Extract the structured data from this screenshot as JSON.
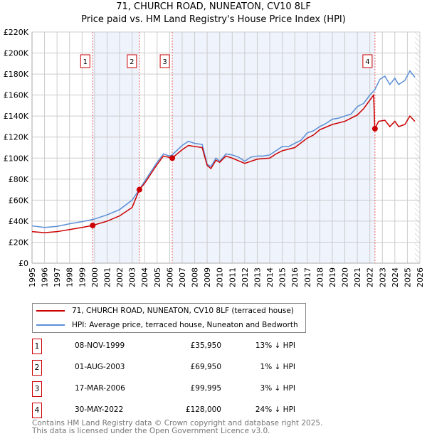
{
  "chart_data": {
    "type": "line",
    "title": "71, CHURCH ROAD, NUNEATON, CV10 8LF",
    "subtitle": "Price paid vs. HM Land Registry's House Price Index (HPI)",
    "xlim": [
      1995,
      2026
    ],
    "ylim": [
      0,
      220000
    ],
    "x_ticks": [
      "1995",
      "1996",
      "1997",
      "1998",
      "1999",
      "2000",
      "2001",
      "2002",
      "2003",
      "2004",
      "2005",
      "2006",
      "2007",
      "2008",
      "2009",
      "2010",
      "2011",
      "2012",
      "2013",
      "2014",
      "2015",
      "2016",
      "2017",
      "2018",
      "2019",
      "2020",
      "2021",
      "2022",
      "2023",
      "2024",
      "2025",
      "2026"
    ],
    "y_ticks": [
      {
        "v": 0,
        "label": "£0"
      },
      {
        "v": 20000,
        "label": "£20K"
      },
      {
        "v": 40000,
        "label": "£40K"
      },
      {
        "v": 60000,
        "label": "£60K"
      },
      {
        "v": 80000,
        "label": "£80K"
      },
      {
        "v": 100000,
        "label": "£100K"
      },
      {
        "v": 120000,
        "label": "£120K"
      },
      {
        "v": 140000,
        "label": "£140K"
      },
      {
        "v": 160000,
        "label": "£160K"
      },
      {
        "v": 180000,
        "label": "£180K"
      },
      {
        "v": 200000,
        "label": "£200K"
      },
      {
        "v": 220000,
        "label": "£220K"
      }
    ],
    "grid": true,
    "legend_placement": "bottom",
    "series": [
      {
        "name": "71, CHURCH ROAD, NUNEATON, CV10 8LF (terraced house)",
        "color": "#cc0000",
        "x": [
          1995,
          1996,
          1997,
          1998,
          1999,
          1999.85,
          2001,
          2002,
          2003,
          2003.58,
          2004,
          2005,
          2005.5,
          2006.2,
          2007,
          2007.5,
          2008.6,
          2009,
          2009.3,
          2009.7,
          2010,
          2010.5,
          2011,
          2012,
          2013,
          2014,
          2014.5,
          2015,
          2016,
          2017,
          2017.5,
          2018,
          2019,
          2020,
          2021,
          2021.5,
          2022.3,
          2022.4,
          2022.7,
          2023.2,
          2023.6,
          2024,
          2024.3,
          2024.8,
          2025.2,
          2025.6
        ],
        "y": [
          30000,
          29000,
          30000,
          32000,
          34000,
          35950,
          40000,
          45000,
          53000,
          69950,
          76000,
          94000,
          102000,
          99995,
          108000,
          112000,
          110000,
          93000,
          90000,
          98000,
          96000,
          102000,
          100000,
          95000,
          99000,
          100000,
          104000,
          107000,
          110000,
          119000,
          122000,
          127000,
          132000,
          135000,
          141000,
          147000,
          160000,
          128000,
          135000,
          136000,
          130000,
          135000,
          130000,
          132000,
          140000,
          135000
        ]
      },
      {
        "name": "HPI: Average price, terraced house, Nuneaton and Bedworth",
        "color": "#5b8fd6",
        "x": [
          1995,
          1996,
          1997,
          1998,
          1999,
          2000,
          2001,
          2002,
          2003,
          2003.6,
          2004,
          2005,
          2005.5,
          2006,
          2006.2,
          2007,
          2007.5,
          2008,
          2008.6,
          2009,
          2009.3,
          2009.7,
          2010,
          2010.5,
          2011,
          2011.5,
          2012,
          2012.5,
          2013,
          2013.5,
          2014,
          2014.5,
          2015,
          2015.5,
          2016,
          2016.5,
          2017,
          2017.5,
          2018,
          2018.5,
          2019,
          2019.5,
          2020,
          2020.5,
          2021,
          2021.5,
          2022,
          2022.4,
          2022.8,
          2023.2,
          2023.6,
          2024,
          2024.3,
          2024.8,
          2025.2,
          2025.6
        ],
        "y": [
          35500,
          34000,
          35000,
          37500,
          39500,
          42000,
          46000,
          51000,
          60000,
          70500,
          78000,
          96000,
          104000,
          102000,
          103000,
          112000,
          116000,
          114000,
          113000,
          94000,
          92000,
          100000,
          97000,
          104000,
          103000,
          101000,
          97000,
          101000,
          102000,
          102000,
          103000,
          107000,
          111000,
          111000,
          114000,
          117000,
          124000,
          126000,
          130000,
          133000,
          137000,
          138000,
          140000,
          142000,
          149000,
          152000,
          160000,
          165000,
          175000,
          178000,
          170000,
          176000,
          170000,
          174000,
          183000,
          177000
        ]
      }
    ],
    "sales": [
      {
        "n": "1",
        "x": 1999.85,
        "y": 35950,
        "date": "08-NOV-1999",
        "price": "£35,950",
        "hpi": "13% ↓ HPI"
      },
      {
        "n": "2",
        "x": 2003.58,
        "y": 69950,
        "date": "01-AUG-2003",
        "price": "£69,950",
        "hpi": "1% ↓ HPI"
      },
      {
        "n": "3",
        "x": 2006.21,
        "y": 99995,
        "date": "17-MAR-2006",
        "price": "£99,995",
        "hpi": "3% ↓ HPI"
      },
      {
        "n": "4",
        "x": 2022.41,
        "y": 128000,
        "date": "30-MAY-2022",
        "price": "£128,000",
        "hpi": "24% ↓ HPI"
      }
    ],
    "shaded_periods": [
      [
        1999.85,
        2003.58
      ],
      [
        2006.21,
        2022.41
      ]
    ],
    "forecast_from": 2025.6
  },
  "footer": {
    "line1": "Contains HM Land Registry data © Crown copyright and database right 2025.",
    "line2": "This data is licensed under the Open Government Licence v3.0."
  }
}
